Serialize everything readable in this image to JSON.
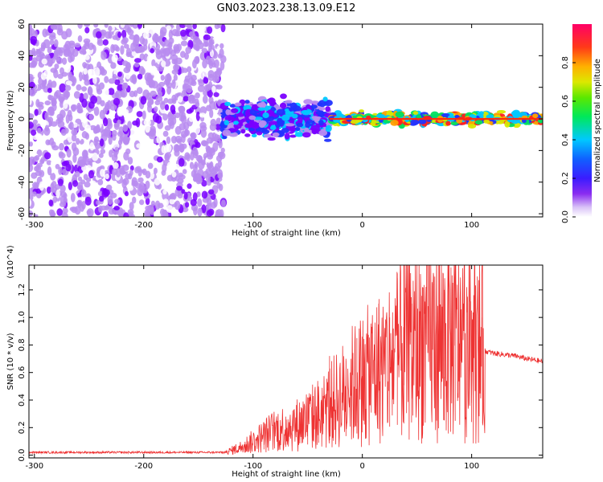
{
  "title": "GN03.2023.238.13.09.E12",
  "colors": {
    "signal_line": "#ee3333",
    "spectrogram_noise": "#7a22e8",
    "colormap": [
      "#ffffff",
      "#b98cf0",
      "#7a00ff",
      "#2233ff",
      "#00c8ff",
      "#00e060",
      "#d8e800",
      "#ffa000",
      "#ff2020",
      "#ff0066"
    ]
  },
  "chart_data": [
    {
      "type": "heatmap",
      "title": "GN03.2023.238.13.09.E12",
      "xlabel": "Height of straight line (km)",
      "ylabel": "Frequency (Hz)",
      "xlim": [
        -305,
        165
      ],
      "ylim": [
        -62,
        60
      ],
      "x_ticks": [
        "-300",
        "-200",
        "-100",
        "0",
        "100"
      ],
      "y_ticks": [
        "60",
        "40",
        "20",
        "0",
        "-20",
        "-40",
        "-60"
      ],
      "colorbar": {
        "label": "Normalized spectral amplitude",
        "range": [
          0,
          1
        ],
        "ticks": [
          "0.0",
          "0.2",
          "0.4",
          "0.6",
          "0.8"
        ]
      },
      "regions": [
        {
          "description_x_range": [
            -305,
            -127
          ],
          "freq_range": [
            -62,
            60
          ],
          "amplitude": [
            0.0,
            0.12
          ]
        },
        {
          "description_x_range": [
            -127,
            -30
          ],
          "freq_range": [
            -12,
            12
          ],
          "amplitude": [
            0.1,
            0.45
          ]
        },
        {
          "description_x_range": [
            -30,
            165
          ],
          "freq_range": [
            -4,
            4
          ],
          "amplitude": [
            0.3,
            0.95
          ]
        }
      ],
      "grid": false
    },
    {
      "type": "line",
      "xlabel": "Height of straight line (km)",
      "ylabel": "SNR (10 * v/v)",
      "y_multiplier": "(x10^4)",
      "xlim": [
        -305,
        165
      ],
      "ylim": [
        -0.02,
        1.38
      ],
      "x_ticks": [
        "-300",
        "-200",
        "-100",
        "0",
        "100"
      ],
      "y_ticks": [
        "0.0",
        "0.2",
        "0.4",
        "0.6",
        "0.8",
        "1.0",
        "1.2"
      ],
      "series": [
        {
          "color": "#ee3333",
          "x": [
            -305,
            -250,
            -200,
            -150,
            -125,
            -110,
            -100,
            -90,
            -80,
            -70,
            -60,
            -50,
            -40,
            -30,
            -20,
            -10,
            0,
            10,
            20,
            30,
            40,
            50,
            60,
            70,
            80,
            90,
            100,
            110,
            120,
            130,
            140,
            150,
            165
          ],
          "y": [
            0.02,
            0.02,
            0.02,
            0.02,
            0.02,
            0.06,
            0.1,
            0.14,
            0.18,
            0.2,
            0.22,
            0.26,
            0.3,
            0.36,
            0.42,
            0.5,
            0.55,
            0.6,
            0.66,
            0.72,
            0.78,
            0.8,
            0.82,
            0.84,
            0.84,
            0.82,
            0.8,
            0.76,
            0.74,
            0.73,
            0.72,
            0.7,
            0.68
          ],
          "peaks": [
            [
              -90,
              0.18
            ],
            [
              -70,
              0.28
            ],
            [
              -50,
              0.42
            ],
            [
              -40,
              0.38
            ],
            [
              -30,
              0.72
            ],
            [
              -15,
              0.7
            ],
            [
              -5,
              0.85
            ],
            [
              0,
              0.86
            ],
            [
              15,
              1.1
            ],
            [
              25,
              1.0
            ],
            [
              32,
              1.32
            ],
            [
              38,
              1.38
            ],
            [
              45,
              1.1
            ],
            [
              55,
              1.22
            ],
            [
              68,
              1.3
            ],
            [
              75,
              1.2
            ],
            [
              85,
              1.15
            ],
            [
              100,
              1.05
            ],
            [
              110,
              1.0
            ]
          ]
        }
      ],
      "grid": false
    }
  ]
}
